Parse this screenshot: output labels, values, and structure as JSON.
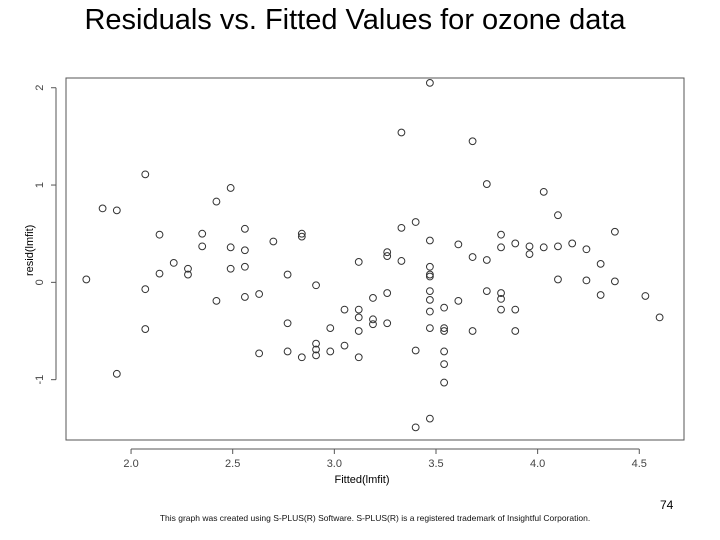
{
  "slide": {
    "title": "Residuals vs. Fitted Values for ozone data",
    "page_number": "74",
    "footer": "This graph was created using S-PLUS(R) Software. S-PLUS(R) is a registered trademark of Insightful Corporation."
  },
  "chart_data": {
    "type": "scatter",
    "title": "",
    "xlabel": "Fitted(lmfit)",
    "ylabel": "resid(lmfit)",
    "xlim": [
      1.68,
      4.72
    ],
    "ylim": [
      -1.62,
      2.1
    ],
    "xticks": [
      2.0,
      2.5,
      3.0,
      3.5,
      4.0,
      4.5
    ],
    "xtick_labels": [
      "2.0",
      "2.5",
      "3.0",
      "3.5",
      "4.0",
      "4.5"
    ],
    "yticks": [
      -1,
      0,
      1,
      2
    ],
    "ytick_labels": [
      "-1",
      "0",
      "1",
      "2"
    ],
    "grid": false,
    "marker": "open-circle",
    "points": [
      [
        1.78,
        0.03
      ],
      [
        1.86,
        0.76
      ],
      [
        1.93,
        0.74
      ],
      [
        1.93,
        -0.94
      ],
      [
        2.07,
        1.11
      ],
      [
        2.07,
        -0.07
      ],
      [
        2.07,
        -0.48
      ],
      [
        2.14,
        0.49
      ],
      [
        2.14,
        0.09
      ],
      [
        2.21,
        0.2
      ],
      [
        2.28,
        0.14
      ],
      [
        2.28,
        0.08
      ],
      [
        2.35,
        0.5
      ],
      [
        2.35,
        0.37
      ],
      [
        2.42,
        0.83
      ],
      [
        2.42,
        -0.19
      ],
      [
        2.49,
        0.97
      ],
      [
        2.49,
        0.36
      ],
      [
        2.49,
        0.14
      ],
      [
        2.56,
        0.55
      ],
      [
        2.56,
        0.33
      ],
      [
        2.56,
        0.16
      ],
      [
        2.56,
        -0.15
      ],
      [
        2.63,
        -0.12
      ],
      [
        2.63,
        -0.73
      ],
      [
        2.7,
        0.42
      ],
      [
        2.77,
        0.08
      ],
      [
        2.77,
        -0.42
      ],
      [
        2.77,
        -0.71
      ],
      [
        2.84,
        0.5
      ],
      [
        2.84,
        0.47
      ],
      [
        2.84,
        -0.77
      ],
      [
        2.91,
        -0.03
      ],
      [
        2.91,
        -0.63
      ],
      [
        2.91,
        -0.69
      ],
      [
        2.91,
        -0.75
      ],
      [
        2.98,
        -0.47
      ],
      [
        2.98,
        -0.71
      ],
      [
        3.05,
        -0.28
      ],
      [
        3.05,
        -0.65
      ],
      [
        3.12,
        0.21
      ],
      [
        3.12,
        -0.28
      ],
      [
        3.12,
        -0.36
      ],
      [
        3.12,
        -0.5
      ],
      [
        3.12,
        -0.77
      ],
      [
        3.19,
        -0.16
      ],
      [
        3.19,
        -0.38
      ],
      [
        3.19,
        -0.43
      ],
      [
        3.26,
        0.31
      ],
      [
        3.26,
        0.27
      ],
      [
        3.26,
        -0.11
      ],
      [
        3.26,
        -0.42
      ],
      [
        3.33,
        1.54
      ],
      [
        3.33,
        0.56
      ],
      [
        3.33,
        0.22
      ],
      [
        3.4,
        0.62
      ],
      [
        3.4,
        -0.7
      ],
      [
        3.4,
        -1.49
      ],
      [
        3.47,
        2.05
      ],
      [
        3.47,
        0.43
      ],
      [
        3.47,
        0.16
      ],
      [
        3.47,
        0.08
      ],
      [
        3.47,
        0.06
      ],
      [
        3.47,
        -0.09
      ],
      [
        3.47,
        -0.18
      ],
      [
        3.47,
        -0.3
      ],
      [
        3.47,
        -0.47
      ],
      [
        3.47,
        -1.4
      ],
      [
        3.54,
        -0.26
      ],
      [
        3.54,
        -0.47
      ],
      [
        3.54,
        -0.5
      ],
      [
        3.54,
        -0.71
      ],
      [
        3.54,
        -0.84
      ],
      [
        3.54,
        -1.03
      ],
      [
        3.61,
        0.39
      ],
      [
        3.61,
        -0.19
      ],
      [
        3.68,
        1.45
      ],
      [
        3.68,
        0.26
      ],
      [
        3.68,
        -0.5
      ],
      [
        3.75,
        1.01
      ],
      [
        3.75,
        0.23
      ],
      [
        3.75,
        -0.09
      ],
      [
        3.82,
        0.49
      ],
      [
        3.82,
        0.36
      ],
      [
        3.82,
        -0.11
      ],
      [
        3.82,
        -0.17
      ],
      [
        3.82,
        -0.28
      ],
      [
        3.89,
        0.4
      ],
      [
        3.89,
        -0.28
      ],
      [
        3.89,
        -0.5
      ],
      [
        3.96,
        0.37
      ],
      [
        3.96,
        0.29
      ],
      [
        4.03,
        0.93
      ],
      [
        4.03,
        0.36
      ],
      [
        4.1,
        0.69
      ],
      [
        4.1,
        0.37
      ],
      [
        4.1,
        0.03
      ],
      [
        4.17,
        0.4
      ],
      [
        4.24,
        0.34
      ],
      [
        4.24,
        0.02
      ],
      [
        4.31,
        0.19
      ],
      [
        4.31,
        -0.13
      ],
      [
        4.38,
        0.52
      ],
      [
        4.38,
        0.01
      ],
      [
        4.53,
        -0.14
      ],
      [
        4.6,
        -0.36
      ]
    ]
  }
}
